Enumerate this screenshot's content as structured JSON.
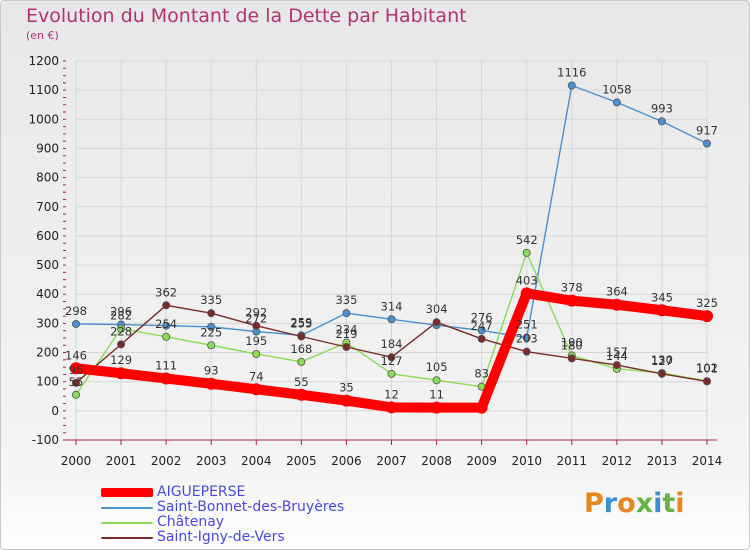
{
  "title": "Evolution du Montant de la Dette par Habitant",
  "subtitle": "(en €)",
  "logo": {
    "text": "Proxiti",
    "letters": [
      "P",
      "r",
      "o",
      "x",
      "i",
      "t",
      "i"
    ]
  },
  "chart_data": {
    "type": "line",
    "title": "Evolution du Montant de la Dette par Habitant",
    "subtitle": "(en €)",
    "xlabel": "",
    "ylabel": "",
    "x": [
      "2000",
      "2001",
      "2002",
      "2003",
      "2004",
      "2005",
      "2006",
      "2007",
      "2008",
      "2009",
      "2010",
      "2011",
      "2012",
      "2013",
      "2014"
    ],
    "ylim": [
      -100,
      1200
    ],
    "yticks": [
      "-100",
      "0",
      "100",
      "200",
      "300",
      "400",
      "500",
      "600",
      "700",
      "800",
      "900",
      "1000",
      "1100",
      "1200"
    ],
    "grid": true,
    "legend": "bottom-left",
    "series": [
      {
        "name": "AIGUEPERSE",
        "color": "#ff0000",
        "values": [
          146,
          129,
          111,
          93,
          74,
          55,
          35,
          12,
          11,
          11,
          403,
          378,
          364,
          345,
          325
        ],
        "labels": [
          "146",
          "129",
          "111",
          "93",
          "74",
          "55",
          "35",
          "12",
          "11",
          "",
          "403",
          "378",
          "364",
          "345",
          "325"
        ]
      },
      {
        "name": "Saint-Bonnet-des-Bruyères",
        "color": "#4a90d0",
        "values": [
          298,
          296,
          292,
          288,
          272,
          259,
          335,
          314,
          294,
          276,
          251,
          1116,
          1058,
          993,
          917
        ],
        "labels": [
          "298",
          "296",
          "",
          "",
          "272",
          "259",
          "335",
          "314",
          "",
          "276",
          "251",
          "1116",
          "1058",
          "993",
          "917"
        ]
      },
      {
        "name": "Châtenay",
        "color": "#88dd55",
        "values": [
          55,
          282,
          254,
          225,
          195,
          168,
          234,
          127,
          105,
          83,
          542,
          190,
          144,
          130,
          102
        ],
        "labels": [
          "55",
          "282",
          "254",
          "225",
          "195",
          "168",
          "234",
          "127",
          "105",
          "83",
          "542",
          "190",
          "144",
          "130",
          "102"
        ]
      },
      {
        "name": "Saint-Igny-de-Vers",
        "color": "#7a2a2a",
        "values": [
          96,
          228,
          362,
          335,
          292,
          255,
          219,
          184,
          304,
          247,
          203,
          180,
          157,
          127,
          101
        ],
        "labels": [
          "96",
          "228",
          "362",
          "335",
          "292",
          "255",
          "219",
          "184",
          "304",
          "247",
          "203",
          "180",
          "157",
          "127",
          "101"
        ]
      }
    ]
  }
}
